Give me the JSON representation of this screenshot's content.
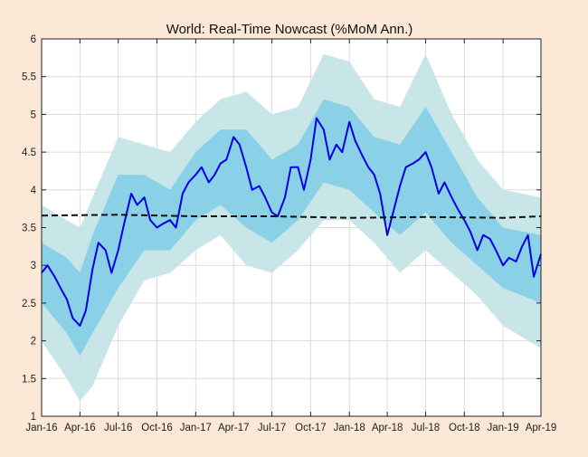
{
  "chart_data": {
    "type": "line",
    "title": "World: Real-Time Nowcast (%MoM Ann.)",
    "xlabel": "",
    "ylabel": "",
    "x_ticks": [
      "Jan-16",
      "Apr-16",
      "Jul-16",
      "Oct-16",
      "Jan-17",
      "Apr-17",
      "Jul-17",
      "Oct-17",
      "Jan-18",
      "Apr-18",
      "Jul-18",
      "Oct-18",
      "Jan-19",
      "Apr-19"
    ],
    "y_ticks": [
      "1",
      "1.5",
      "2",
      "2.5",
      "3",
      "3.5",
      "4",
      "4.5",
      "5",
      "5.5",
      "6"
    ],
    "ylim": [
      1,
      6
    ],
    "xlim": [
      "2016-01-01",
      "2019-04-01"
    ],
    "grid": true,
    "legend": "none",
    "colors": {
      "nowcast": "#0000e6",
      "trend": "#111111",
      "inner_band": "#7fcde6",
      "outer_band": "#c2e2e4",
      "background": "#fbe8d6",
      "plot_area": "#ffffff"
    },
    "series": [
      {
        "role": "nowcast",
        "style": "solid",
        "x": [
          "2016-01-01",
          "2016-01-15",
          "2016-02-01",
          "2016-02-15",
          "2016-03-01",
          "2016-03-15",
          "2016-04-01",
          "2016-04-15",
          "2016-05-01",
          "2016-05-15",
          "2016-06-01",
          "2016-06-15",
          "2016-07-01",
          "2016-07-15",
          "2016-08-01",
          "2016-08-15",
          "2016-09-01",
          "2016-09-15",
          "2016-10-01",
          "2016-10-15",
          "2016-11-01",
          "2016-11-15",
          "2016-12-01",
          "2016-12-15",
          "2017-01-01",
          "2017-01-15",
          "2017-02-01",
          "2017-02-15",
          "2017-03-01",
          "2017-03-15",
          "2017-04-01",
          "2017-04-15",
          "2017-05-01",
          "2017-05-15",
          "2017-06-01",
          "2017-06-15",
          "2017-07-01",
          "2017-07-15",
          "2017-08-01",
          "2017-08-15",
          "2017-09-01",
          "2017-09-15",
          "2017-10-01",
          "2017-10-15",
          "2017-11-01",
          "2017-11-15",
          "2017-12-01",
          "2017-12-15",
          "2018-01-01",
          "2018-01-15",
          "2018-02-01",
          "2018-02-15",
          "2018-03-01",
          "2018-03-15",
          "2018-04-01",
          "2018-04-15",
          "2018-05-01",
          "2018-05-15",
          "2018-06-01",
          "2018-06-15",
          "2018-07-01",
          "2018-07-15",
          "2018-08-01",
          "2018-08-15",
          "2018-09-01",
          "2018-09-15",
          "2018-10-01",
          "2018-10-15",
          "2018-11-01",
          "2018-11-15",
          "2018-12-01",
          "2018-12-15",
          "2019-01-01",
          "2019-01-15",
          "2019-02-01",
          "2019-02-15",
          "2019-03-01",
          "2019-03-15",
          "2019-04-01"
        ],
        "values": [
          2.9,
          3.0,
          2.85,
          2.7,
          2.55,
          2.3,
          2.2,
          2.4,
          2.95,
          3.3,
          3.2,
          2.9,
          3.2,
          3.55,
          3.95,
          3.8,
          3.9,
          3.6,
          3.5,
          3.55,
          3.6,
          3.5,
          3.95,
          4.1,
          4.2,
          4.3,
          4.1,
          4.2,
          4.35,
          4.4,
          4.7,
          4.6,
          4.3,
          4.0,
          4.05,
          3.9,
          3.7,
          3.65,
          3.9,
          4.3,
          4.3,
          4.0,
          4.4,
          4.95,
          4.8,
          4.4,
          4.6,
          4.5,
          4.9,
          4.65,
          4.45,
          4.3,
          4.2,
          3.95,
          3.4,
          3.7,
          4.05,
          4.3,
          4.35,
          4.4,
          4.5,
          4.3,
          3.95,
          4.1,
          3.9,
          3.75,
          3.6,
          3.45,
          3.2,
          3.4,
          3.35,
          3.2,
          3.0,
          3.1,
          3.05,
          3.25,
          3.4,
          2.85,
          3.15
        ]
      },
      {
        "role": "trend",
        "style": "dashed",
        "x": [
          "2016-01-01",
          "2016-07-01",
          "2017-01-01",
          "2017-07-01",
          "2018-01-01",
          "2018-07-01",
          "2019-01-01",
          "2019-04-01"
        ],
        "values": [
          3.66,
          3.67,
          3.65,
          3.65,
          3.63,
          3.64,
          3.63,
          3.65
        ]
      }
    ],
    "bands": [
      {
        "role": "outer",
        "x": [
          "2016-01-01",
          "2016-03-01",
          "2016-04-01",
          "2016-05-01",
          "2016-07-01",
          "2016-09-01",
          "2016-11-01",
          "2017-01-01",
          "2017-03-01",
          "2017-05-01",
          "2017-07-01",
          "2017-09-01",
          "2017-11-01",
          "2018-01-01",
          "2018-03-01",
          "2018-05-01",
          "2018-07-01",
          "2018-09-01",
          "2018-11-01",
          "2019-01-01",
          "2019-04-01"
        ],
        "lower": [
          2.0,
          1.5,
          1.2,
          1.4,
          2.2,
          2.8,
          2.9,
          3.2,
          3.4,
          3.0,
          2.9,
          3.2,
          3.6,
          3.6,
          3.3,
          2.9,
          3.2,
          2.9,
          2.6,
          2.2,
          1.9
        ],
        "upper": [
          3.8,
          3.6,
          3.5,
          3.9,
          4.7,
          4.6,
          4.5,
          4.9,
          5.2,
          5.3,
          5.0,
          5.1,
          5.8,
          5.7,
          5.2,
          5.1,
          5.8,
          5.0,
          4.4,
          4.0,
          3.9
        ]
      },
      {
        "role": "inner",
        "x": [
          "2016-01-01",
          "2016-03-01",
          "2016-04-01",
          "2016-05-01",
          "2016-07-01",
          "2016-09-01",
          "2016-11-01",
          "2017-01-01",
          "2017-03-01",
          "2017-05-01",
          "2017-07-01",
          "2017-09-01",
          "2017-11-01",
          "2018-01-01",
          "2018-03-01",
          "2018-05-01",
          "2018-07-01",
          "2018-09-01",
          "2018-11-01",
          "2019-01-01",
          "2019-04-01"
        ],
        "lower": [
          2.5,
          2.1,
          1.8,
          2.1,
          2.7,
          3.2,
          3.2,
          3.6,
          3.8,
          3.5,
          3.3,
          3.6,
          4.1,
          4.0,
          3.7,
          3.4,
          3.7,
          3.3,
          3.0,
          2.7,
          2.5
        ],
        "upper": [
          3.3,
          3.1,
          2.9,
          3.4,
          4.2,
          4.2,
          4.0,
          4.5,
          4.8,
          4.8,
          4.4,
          4.6,
          5.2,
          5.1,
          4.7,
          4.6,
          5.1,
          4.5,
          3.9,
          3.5,
          3.4
        ]
      }
    ]
  }
}
